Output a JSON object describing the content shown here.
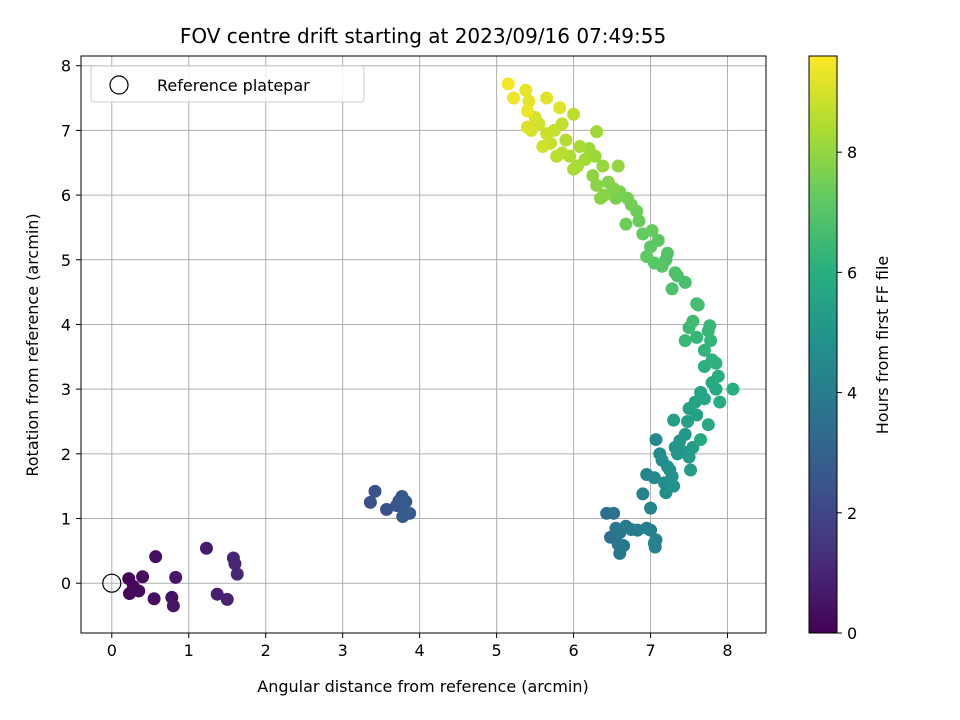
{
  "chart_data": {
    "type": "scatter",
    "title": "FOV centre drift starting at 2023/09/16 07:49:55",
    "xlabel": "Angular distance from reference (arcmin)",
    "ylabel": "Rotation from reference (arcmin)",
    "xlim": [
      -0.4,
      8.5
    ],
    "ylim": [
      -0.77,
      8.15
    ],
    "x_ticks": [
      "0",
      "1",
      "2",
      "3",
      "4",
      "5",
      "6",
      "7",
      "8"
    ],
    "y_ticks": [
      "0",
      "1",
      "2",
      "3",
      "4",
      "5",
      "6",
      "7",
      "8"
    ],
    "grid": true,
    "legend": {
      "position": "top-left",
      "entries": [
        "Reference platepar"
      ]
    },
    "reference": {
      "x": 0,
      "y": 0
    },
    "colorbar": {
      "label": "Hours from first FF file",
      "colormap": "viridis",
      "range": [
        0,
        9.6
      ],
      "ticks": [
        "0",
        "2",
        "4",
        "6",
        "8"
      ]
    },
    "points": [
      {
        "x": 0.22,
        "y": 0.07,
        "c": 0.1
      },
      {
        "x": 0.28,
        "y": -0.05,
        "c": 0.15
      },
      {
        "x": 0.23,
        "y": -0.16,
        "c": 0.2
      },
      {
        "x": 0.35,
        "y": -0.12,
        "c": 0.25
      },
      {
        "x": 0.4,
        "y": 0.1,
        "c": 0.3
      },
      {
        "x": 0.55,
        "y": -0.24,
        "c": 0.35
      },
      {
        "x": 0.57,
        "y": 0.41,
        "c": 0.4
      },
      {
        "x": 0.78,
        "y": -0.22,
        "c": 0.5
      },
      {
        "x": 0.8,
        "y": -0.35,
        "c": 0.55
      },
      {
        "x": 0.83,
        "y": 0.09,
        "c": 0.6
      },
      {
        "x": 1.23,
        "y": 0.54,
        "c": 0.75
      },
      {
        "x": 1.37,
        "y": -0.17,
        "c": 0.85
      },
      {
        "x": 1.5,
        "y": -0.25,
        "c": 0.9
      },
      {
        "x": 1.58,
        "y": 0.39,
        "c": 0.95
      },
      {
        "x": 1.6,
        "y": 0.3,
        "c": 1.0
      },
      {
        "x": 1.63,
        "y": 0.14,
        "c": 1.05
      },
      {
        "x": 3.36,
        "y": 1.25,
        "c": 2.35
      },
      {
        "x": 3.42,
        "y": 1.42,
        "c": 2.4
      },
      {
        "x": 3.57,
        "y": 1.14,
        "c": 2.45
      },
      {
        "x": 3.7,
        "y": 1.2,
        "c": 2.5
      },
      {
        "x": 3.73,
        "y": 1.27,
        "c": 2.55
      },
      {
        "x": 3.77,
        "y": 1.34,
        "c": 2.6
      },
      {
        "x": 3.8,
        "y": 1.1,
        "c": 2.65
      },
      {
        "x": 3.82,
        "y": 1.26,
        "c": 2.7
      },
      {
        "x": 3.78,
        "y": 1.03,
        "c": 2.75
      },
      {
        "x": 3.87,
        "y": 1.08,
        "c": 2.8
      },
      {
        "x": 6.43,
        "y": 1.08,
        "c": 3.5
      },
      {
        "x": 6.48,
        "y": 0.71,
        "c": 3.55
      },
      {
        "x": 6.52,
        "y": 1.08,
        "c": 3.6
      },
      {
        "x": 6.55,
        "y": 0.85,
        "c": 3.65
      },
      {
        "x": 6.58,
        "y": 0.6,
        "c": 3.7
      },
      {
        "x": 6.6,
        "y": 0.46,
        "c": 3.75
      },
      {
        "x": 6.6,
        "y": 0.78,
        "c": 3.8
      },
      {
        "x": 6.65,
        "y": 0.58,
        "c": 3.85
      },
      {
        "x": 6.68,
        "y": 0.88,
        "c": 3.9
      },
      {
        "x": 6.75,
        "y": 0.83,
        "c": 3.95
      },
      {
        "x": 6.83,
        "y": 0.82,
        "c": 4.0
      },
      {
        "x": 6.95,
        "y": 0.85,
        "c": 4.05
      },
      {
        "x": 7.0,
        "y": 0.82,
        "c": 4.1
      },
      {
        "x": 7.05,
        "y": 0.62,
        "c": 4.15
      },
      {
        "x": 7.06,
        "y": 0.56,
        "c": 4.2
      },
      {
        "x": 7.07,
        "y": 0.67,
        "c": 4.25
      },
      {
        "x": 6.9,
        "y": 1.38,
        "c": 4.3
      },
      {
        "x": 7.0,
        "y": 1.16,
        "c": 4.35
      },
      {
        "x": 6.95,
        "y": 1.68,
        "c": 4.4
      },
      {
        "x": 7.05,
        "y": 1.63,
        "c": 4.45
      },
      {
        "x": 7.07,
        "y": 2.22,
        "c": 4.5
      },
      {
        "x": 7.12,
        "y": 2.0,
        "c": 4.55
      },
      {
        "x": 7.15,
        "y": 1.9,
        "c": 4.6
      },
      {
        "x": 7.18,
        "y": 1.55,
        "c": 4.65
      },
      {
        "x": 7.2,
        "y": 1.4,
        "c": 4.7
      },
      {
        "x": 7.22,
        "y": 1.8,
        "c": 4.75
      },
      {
        "x": 7.25,
        "y": 1.75,
        "c": 4.8
      },
      {
        "x": 7.28,
        "y": 1.65,
        "c": 4.85
      },
      {
        "x": 7.3,
        "y": 1.5,
        "c": 4.9
      },
      {
        "x": 7.32,
        "y": 2.1,
        "c": 4.95
      },
      {
        "x": 7.35,
        "y": 2.0,
        "c": 5.0
      },
      {
        "x": 7.38,
        "y": 2.2,
        "c": 5.05
      },
      {
        "x": 7.4,
        "y": 2.05,
        "c": 5.1
      },
      {
        "x": 7.45,
        "y": 2.3,
        "c": 5.15
      },
      {
        "x": 7.5,
        "y": 1.95,
        "c": 5.2
      },
      {
        "x": 7.52,
        "y": 1.75,
        "c": 5.25
      },
      {
        "x": 7.55,
        "y": 2.1,
        "c": 5.3
      },
      {
        "x": 7.3,
        "y": 2.52,
        "c": 5.35
      },
      {
        "x": 7.48,
        "y": 2.5,
        "c": 5.4
      },
      {
        "x": 7.6,
        "y": 2.6,
        "c": 5.45
      },
      {
        "x": 7.5,
        "y": 2.7,
        "c": 5.5
      },
      {
        "x": 7.58,
        "y": 2.8,
        "c": 5.55
      },
      {
        "x": 7.65,
        "y": 2.95,
        "c": 5.6
      },
      {
        "x": 7.7,
        "y": 2.85,
        "c": 5.65
      },
      {
        "x": 7.65,
        "y": 2.22,
        "c": 5.7
      },
      {
        "x": 7.75,
        "y": 2.45,
        "c": 5.75
      },
      {
        "x": 7.8,
        "y": 3.1,
        "c": 5.8
      },
      {
        "x": 7.85,
        "y": 3.0,
        "c": 5.85
      },
      {
        "x": 7.9,
        "y": 2.8,
        "c": 5.9
      },
      {
        "x": 7.88,
        "y": 3.2,
        "c": 5.95
      },
      {
        "x": 8.07,
        "y": 3.0,
        "c": 6.0
      },
      {
        "x": 7.7,
        "y": 3.35,
        "c": 6.05
      },
      {
        "x": 7.8,
        "y": 3.45,
        "c": 6.1
      },
      {
        "x": 7.85,
        "y": 3.4,
        "c": 6.15
      },
      {
        "x": 7.7,
        "y": 3.6,
        "c": 6.2
      },
      {
        "x": 7.78,
        "y": 3.75,
        "c": 6.25
      },
      {
        "x": 7.6,
        "y": 3.8,
        "c": 6.3
      },
      {
        "x": 7.75,
        "y": 3.9,
        "c": 6.35
      },
      {
        "x": 7.77,
        "y": 3.98,
        "c": 6.4
      },
      {
        "x": 7.45,
        "y": 3.75,
        "c": 6.45
      },
      {
        "x": 7.5,
        "y": 3.95,
        "c": 6.5
      },
      {
        "x": 7.55,
        "y": 4.05,
        "c": 6.55
      },
      {
        "x": 7.6,
        "y": 4.32,
        "c": 6.6
      },
      {
        "x": 7.62,
        "y": 4.3,
        "c": 6.65
      },
      {
        "x": 7.45,
        "y": 4.65,
        "c": 6.7
      },
      {
        "x": 7.35,
        "y": 4.75,
        "c": 6.75
      },
      {
        "x": 7.28,
        "y": 4.55,
        "c": 6.8
      },
      {
        "x": 7.32,
        "y": 4.8,
        "c": 6.85
      },
      {
        "x": 7.2,
        "y": 5.0,
        "c": 6.9
      },
      {
        "x": 7.22,
        "y": 5.1,
        "c": 6.95
      },
      {
        "x": 7.15,
        "y": 4.9,
        "c": 7.0
      },
      {
        "x": 7.05,
        "y": 4.95,
        "c": 7.05
      },
      {
        "x": 7.1,
        "y": 5.3,
        "c": 7.1
      },
      {
        "x": 7.0,
        "y": 5.2,
        "c": 7.15
      },
      {
        "x": 6.95,
        "y": 5.05,
        "c": 7.2
      },
      {
        "x": 6.9,
        "y": 5.4,
        "c": 7.25
      },
      {
        "x": 7.02,
        "y": 5.45,
        "c": 7.3
      },
      {
        "x": 6.85,
        "y": 5.6,
        "c": 7.35
      },
      {
        "x": 6.82,
        "y": 5.75,
        "c": 7.4
      },
      {
        "x": 6.68,
        "y": 5.55,
        "c": 7.45
      },
      {
        "x": 6.75,
        "y": 5.85,
        "c": 7.5
      },
      {
        "x": 6.7,
        "y": 5.95,
        "c": 7.55
      },
      {
        "x": 6.6,
        "y": 6.05,
        "c": 7.6
      },
      {
        "x": 6.55,
        "y": 5.95,
        "c": 7.65
      },
      {
        "x": 6.52,
        "y": 6.1,
        "c": 7.7
      },
      {
        "x": 6.45,
        "y": 6.2,
        "c": 7.75
      },
      {
        "x": 6.4,
        "y": 6.0,
        "c": 7.8
      },
      {
        "x": 6.35,
        "y": 5.95,
        "c": 7.85
      },
      {
        "x": 6.3,
        "y": 6.15,
        "c": 7.9
      },
      {
        "x": 6.25,
        "y": 6.3,
        "c": 7.95
      },
      {
        "x": 6.58,
        "y": 6.45,
        "c": 8.0
      },
      {
        "x": 6.38,
        "y": 6.45,
        "c": 8.05
      },
      {
        "x": 6.28,
        "y": 6.6,
        "c": 8.1
      },
      {
        "x": 6.2,
        "y": 6.72,
        "c": 8.15
      },
      {
        "x": 6.3,
        "y": 6.98,
        "c": 8.2
      },
      {
        "x": 6.15,
        "y": 6.55,
        "c": 8.25
      },
      {
        "x": 6.05,
        "y": 6.45,
        "c": 8.3
      },
      {
        "x": 6.0,
        "y": 6.4,
        "c": 8.35
      },
      {
        "x": 6.08,
        "y": 6.75,
        "c": 8.4
      },
      {
        "x": 5.95,
        "y": 6.6,
        "c": 8.45
      },
      {
        "x": 5.9,
        "y": 6.85,
        "c": 8.5
      },
      {
        "x": 5.85,
        "y": 6.65,
        "c": 8.55
      },
      {
        "x": 5.78,
        "y": 6.6,
        "c": 8.6
      },
      {
        "x": 6.0,
        "y": 7.25,
        "c": 8.65
      },
      {
        "x": 5.85,
        "y": 7.1,
        "c": 8.7
      },
      {
        "x": 5.75,
        "y": 7.0,
        "c": 8.75
      },
      {
        "x": 5.7,
        "y": 6.8,
        "c": 8.8
      },
      {
        "x": 5.65,
        "y": 6.95,
        "c": 8.85
      },
      {
        "x": 5.6,
        "y": 6.75,
        "c": 8.9
      },
      {
        "x": 5.55,
        "y": 7.1,
        "c": 8.95
      },
      {
        "x": 5.5,
        "y": 7.2,
        "c": 9.0
      },
      {
        "x": 5.45,
        "y": 7.0,
        "c": 9.05
      },
      {
        "x": 5.4,
        "y": 7.05,
        "c": 9.1
      },
      {
        "x": 5.82,
        "y": 7.35,
        "c": 9.15
      },
      {
        "x": 5.65,
        "y": 7.5,
        "c": 9.2
      },
      {
        "x": 5.42,
        "y": 7.45,
        "c": 9.25
      },
      {
        "x": 5.38,
        "y": 7.62,
        "c": 9.3
      },
      {
        "x": 5.4,
        "y": 7.3,
        "c": 9.35
      },
      {
        "x": 5.22,
        "y": 7.5,
        "c": 9.4
      },
      {
        "x": 5.15,
        "y": 7.72,
        "c": 9.5
      }
    ]
  }
}
